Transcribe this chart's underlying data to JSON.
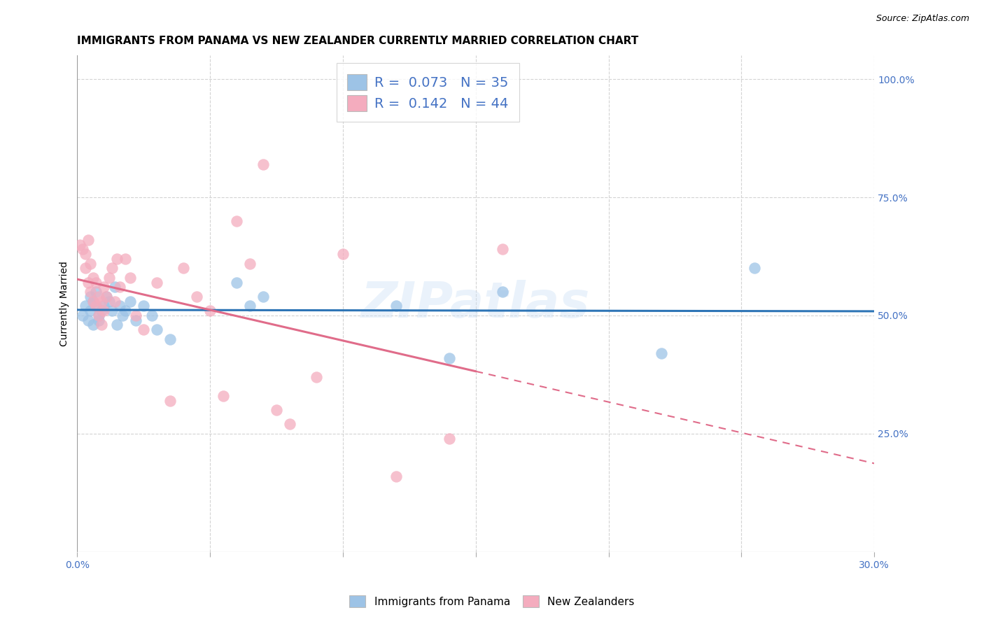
{
  "title": "IMMIGRANTS FROM PANAMA VS NEW ZEALANDER CURRENTLY MARRIED CORRELATION CHART",
  "source": "Source: ZipAtlas.com",
  "ylabel": "Currently Married",
  "xlim": [
    0.0,
    0.3
  ],
  "ylim": [
    0.0,
    1.05
  ],
  "x_ticks": [
    0.0,
    0.05,
    0.1,
    0.15,
    0.2,
    0.25,
    0.3
  ],
  "y_ticks_right": [
    0.25,
    0.5,
    0.75,
    1.0
  ],
  "y_tick_labels_right": [
    "25.0%",
    "50.0%",
    "75.0%",
    "100.0%"
  ],
  "blue_color": "#9dc3e6",
  "pink_color": "#f4acbe",
  "blue_line_color": "#2e75b6",
  "pink_line_color": "#e06c8a",
  "legend_R_blue": "0.073",
  "legend_N_blue": "35",
  "legend_R_pink": "0.142",
  "legend_N_pink": "44",
  "legend_label_blue": "Immigrants from Panama",
  "legend_label_pink": "New Zealanders",
  "blue_x": [
    0.002,
    0.003,
    0.004,
    0.005,
    0.005,
    0.006,
    0.006,
    0.007,
    0.007,
    0.008,
    0.008,
    0.009,
    0.01,
    0.011,
    0.012,
    0.013,
    0.014,
    0.015,
    0.016,
    0.017,
    0.018,
    0.02,
    0.022,
    0.025,
    0.028,
    0.03,
    0.035,
    0.06,
    0.065,
    0.07,
    0.12,
    0.14,
    0.16,
    0.22,
    0.255
  ],
  "blue_y": [
    0.5,
    0.52,
    0.49,
    0.54,
    0.51,
    0.53,
    0.48,
    0.55,
    0.52,
    0.5,
    0.49,
    0.51,
    0.52,
    0.54,
    0.53,
    0.51,
    0.56,
    0.48,
    0.52,
    0.5,
    0.51,
    0.53,
    0.49,
    0.52,
    0.5,
    0.47,
    0.45,
    0.57,
    0.52,
    0.54,
    0.52,
    0.41,
    0.55,
    0.42,
    0.6
  ],
  "pink_x": [
    0.001,
    0.002,
    0.003,
    0.003,
    0.004,
    0.004,
    0.005,
    0.005,
    0.006,
    0.006,
    0.007,
    0.007,
    0.008,
    0.008,
    0.009,
    0.009,
    0.01,
    0.01,
    0.011,
    0.012,
    0.013,
    0.014,
    0.015,
    0.016,
    0.018,
    0.02,
    0.022,
    0.025,
    0.03,
    0.035,
    0.04,
    0.045,
    0.05,
    0.055,
    0.06,
    0.065,
    0.07,
    0.075,
    0.08,
    0.09,
    0.1,
    0.12,
    0.14,
    0.16
  ],
  "pink_y": [
    0.65,
    0.64,
    0.6,
    0.63,
    0.57,
    0.66,
    0.55,
    0.61,
    0.53,
    0.58,
    0.52,
    0.57,
    0.5,
    0.54,
    0.48,
    0.53,
    0.51,
    0.56,
    0.54,
    0.58,
    0.6,
    0.53,
    0.62,
    0.56,
    0.62,
    0.58,
    0.5,
    0.47,
    0.57,
    0.32,
    0.6,
    0.54,
    0.51,
    0.33,
    0.7,
    0.61,
    0.82,
    0.3,
    0.27,
    0.37,
    0.63,
    0.16,
    0.24,
    0.64
  ],
  "watermark": "ZIPatlas",
  "background_color": "#ffffff",
  "grid_color": "#d3d3d3"
}
